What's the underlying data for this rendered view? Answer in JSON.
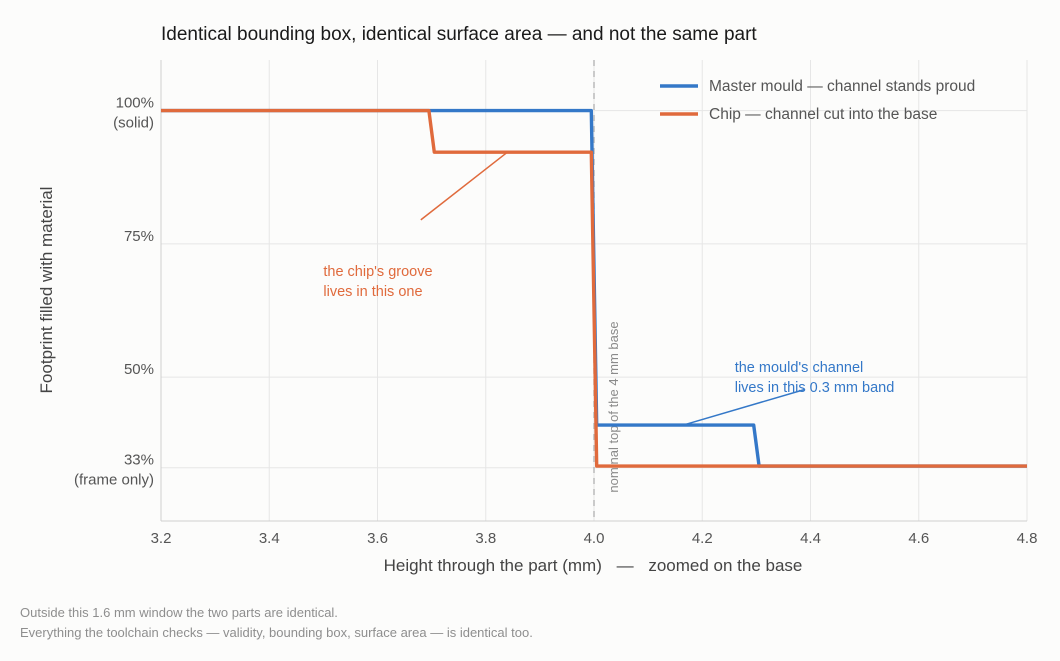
{
  "chart_data": {
    "type": "line",
    "title": "Identical bounding box, identical surface area — and not the same part",
    "xlabel_parts": [
      "Height through the part (mm)",
      "—",
      "zoomed on the base"
    ],
    "ylabel": "Footprint filled with material",
    "xlim": [
      3.2,
      4.8
    ],
    "ylim": [
      0.23,
      1.095
    ],
    "xticks": [
      {
        "v": 3.2,
        "label": "3.2"
      },
      {
        "v": 3.4,
        "label": "3.4"
      },
      {
        "v": 3.6,
        "label": "3.6"
      },
      {
        "v": 3.8,
        "label": "3.8"
      },
      {
        "v": 4.0,
        "label": "4.0"
      },
      {
        "v": 4.2,
        "label": "4.2"
      },
      {
        "v": 4.4,
        "label": "4.4"
      },
      {
        "v": 4.6,
        "label": "4.6"
      },
      {
        "v": 4.8,
        "label": "4.8"
      }
    ],
    "yticks": [
      {
        "v": 1.0,
        "lines": [
          "100%",
          "(solid)"
        ]
      },
      {
        "v": 0.75,
        "lines": [
          "75%"
        ]
      },
      {
        "v": 0.5,
        "lines": [
          "50%"
        ]
      },
      {
        "v": 0.33,
        "lines": [
          "33%",
          "(frame only)"
        ]
      }
    ],
    "grid": true,
    "legend_position": "top-right",
    "series": [
      {
        "name": "Master mould — channel stands proud",
        "color": "#3478c8",
        "x": [
          3.2,
          3.995,
          4.005,
          4.295,
          4.305,
          4.8
        ],
        "y": [
          1.0,
          1.0,
          0.41,
          0.41,
          0.333,
          0.333
        ]
      },
      {
        "name": "Chip — channel cut into the base",
        "color": "#e06a3c",
        "x": [
          3.2,
          3.695,
          3.705,
          3.995,
          4.005,
          4.8
        ],
        "y": [
          1.0,
          1.0,
          0.922,
          0.922,
          0.333,
          0.333
        ]
      }
    ],
    "reference_line": {
      "x": 4.0,
      "label": "nominal top of the 4 mm base",
      "color": "#b5b5b5"
    },
    "annotations": [
      {
        "lines": [
          "the chip's groove",
          "lives in this one"
        ],
        "color": "#e06a3c",
        "text_at": [
          3.5,
          0.69
        ],
        "arrow_from": [
          3.68,
          0.795
        ],
        "arrow_to": [
          3.84,
          0.922
        ]
      },
      {
        "lines": [
          "the mould's channel",
          "lives in this 0.3 mm band"
        ],
        "color": "#3478c8",
        "text_at": [
          4.26,
          0.51
        ],
        "arrow_from": [
          4.39,
          0.477
        ],
        "arrow_to": [
          4.165,
          0.41
        ]
      }
    ]
  },
  "footnotes": [
    "Outside this 1.6 mm window the two parts are identical.",
    "Everything the toolchain checks — validity, bounding box, surface area — is identical too."
  ]
}
